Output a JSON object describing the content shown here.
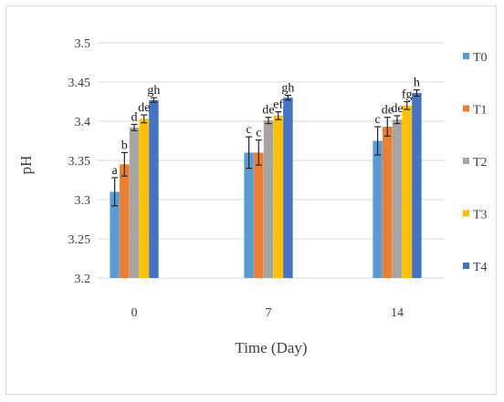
{
  "chart_data": {
    "type": "bar",
    "title": "",
    "xlabel": "Time (Day)",
    "ylabel": "pH",
    "ylim": [
      3.2,
      3.5
    ],
    "ytick_step": 0.05,
    "ytick_labels": [
      "3.2",
      "3.25",
      "3.3",
      "3.35",
      "3.4",
      "3.45",
      "3.5"
    ],
    "categories": [
      "0",
      "7",
      "14"
    ],
    "grid": true,
    "legend_position": "right",
    "series": [
      {
        "name": "T0",
        "color": "#5b9bd5",
        "values": [
          3.31,
          3.36,
          3.375
        ],
        "errors": [
          0.018,
          0.02,
          0.018
        ],
        "labels": [
          "a",
          "c",
          "c"
        ]
      },
      {
        "name": "T1",
        "color": "#ed7d31",
        "values": [
          3.345,
          3.36,
          3.393
        ],
        "errors": [
          0.015,
          0.016,
          0.012
        ],
        "labels": [
          "b",
          "c",
          "de"
        ]
      },
      {
        "name": "T2",
        "color": "#a5a5a5",
        "values": [
          3.392,
          3.401,
          3.402
        ],
        "errors": [
          0.004,
          0.004,
          0.005
        ],
        "labels": [
          "d",
          "de",
          "de"
        ]
      },
      {
        "name": "T3",
        "color": "#ffc000",
        "values": [
          3.403,
          3.407,
          3.42
        ],
        "errors": [
          0.005,
          0.005,
          0.005
        ],
        "labels": [
          "de",
          "ef",
          "fg"
        ]
      },
      {
        "name": "T4",
        "color": "#4472c4",
        "values": [
          3.427,
          3.43,
          3.436
        ],
        "errors": [
          0.003,
          0.003,
          0.004
        ],
        "labels": [
          "gh",
          "gh",
          "h"
        ]
      }
    ]
  }
}
